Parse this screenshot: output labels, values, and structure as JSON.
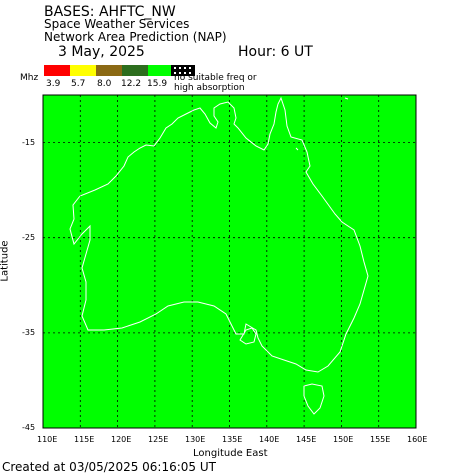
{
  "header": {
    "title": "BASES: AHFTC_NW",
    "org": "Space Weather Services",
    "product": "Network Area Prediction (NAP)",
    "date": "3 May, 2025",
    "hour_label": "Hour:  6 UT"
  },
  "legend": {
    "unit": "Mhz",
    "colors": [
      "#ff0000",
      "#ffff00",
      "#8b6914",
      "#2d6e1e",
      "#00ff00"
    ],
    "values": [
      "3.9",
      "5.7",
      "8.0",
      "12.2",
      "15.9"
    ],
    "no_freq_text_1": "no suitable freq or",
    "no_freq_text_2": "high absorption",
    "no_freq_pattern": "hatched"
  },
  "map": {
    "fill_color": "#00ff00",
    "coast_color": "#ffffff",
    "grid_color": "#000000",
    "ylabel": "Latitude",
    "xlabel": "Longitude East",
    "y_ticks": [
      "-15",
      "-25",
      "-35",
      "-45"
    ],
    "x_ticks": [
      "110E",
      "115E",
      "120E",
      "125E",
      "130E",
      "135E",
      "140E",
      "145E",
      "150E",
      "155E",
      "160E"
    ],
    "lon_range": [
      110,
      160
    ],
    "lat_range": [
      -45,
      -10
    ]
  },
  "footer": {
    "created": "Created at 03/05/2025 06:16:05 UT"
  }
}
